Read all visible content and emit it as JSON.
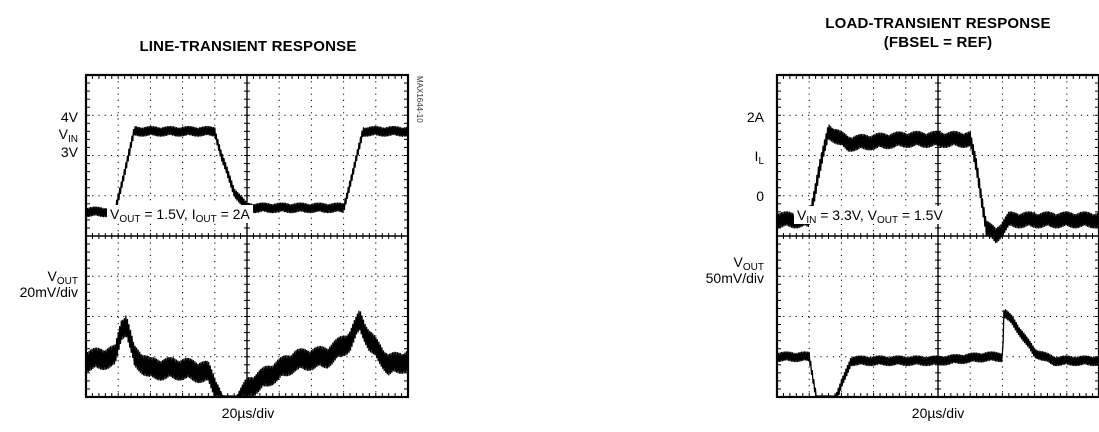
{
  "chart_data": [
    {
      "type": "line",
      "title": "LINE-TRANSIENT RESPONSE",
      "xlabel": "20µs/div",
      "figure_code": "MAX1644-10",
      "annotation": {
        "v": "V",
        "v_sub": "OUT",
        "v_val": " = 1.5V, ",
        "i": "I",
        "i_sub": "OUT",
        "i_val": " = 2A"
      },
      "divisions": {
        "x": 10,
        "y": 8
      },
      "grid": true,
      "traces": [
        {
          "label_lines": [
            {
              "main": "4V"
            },
            {
              "main": "V",
              "sub": "IN"
            },
            {
              "main": "3V"
            }
          ],
          "x": [
            0,
            0.9,
            1.2,
            1.5,
            4.0,
            4.2,
            4.6,
            5.0,
            8.0,
            8.3,
            8.6,
            10
          ],
          "y": [
            -1.4,
            -1.4,
            -0.4,
            0.6,
            0.6,
            0.0,
            -0.9,
            -1.3,
            -1.3,
            -0.4,
            0.6,
            0.6
          ],
          "ripple_div": 0.12
        },
        {
          "label_lines": [
            {
              "main": "V",
              "sub": "OUT"
            },
            {
              "main": "20mV/div"
            }
          ],
          "x": [
            0,
            0.9,
            1.1,
            1.25,
            1.5,
            2.0,
            3.0,
            3.8,
            4.1,
            4.4,
            4.6,
            5.0,
            5.6,
            6.5,
            7.5,
            8.2,
            8.5,
            8.8,
            9.4,
            10
          ],
          "y": [
            -1.1,
            -1.0,
            -0.3,
            -0.2,
            -1.0,
            -1.3,
            -1.3,
            -1.4,
            -1.9,
            -2.6,
            -2.3,
            -1.8,
            -1.5,
            -1.1,
            -1.0,
            -0.6,
            -0.1,
            -0.6,
            -1.2,
            -1.1
          ],
          "ripple_div": 0.28
        }
      ]
    },
    {
      "type": "line",
      "title": "LOAD-TRANSIENT RESPONSE",
      "subtitle": "(FBSEL = REF)",
      "xlabel": "20µs/div",
      "annotation": {
        "v": "V",
        "v_sub": "IN",
        "v_val": " = 3.3V, ",
        "i": "V",
        "i_sub": "OUT",
        "i_val": " = 1.5V"
      },
      "divisions": {
        "x": 10,
        "y": 8
      },
      "grid": true,
      "traces": [
        {
          "label_lines": [
            {
              "main": "2A"
            },
            {
              "main": "I",
              "sub": "L"
            },
            {
              "main": "0"
            }
          ],
          "x": [
            0,
            1.0,
            1.3,
            1.6,
            2.2,
            4.0,
            6.0,
            6.2,
            6.5,
            6.8,
            7.2,
            10
          ],
          "y": [
            -1.6,
            -1.6,
            -0.4,
            0.6,
            0.3,
            0.4,
            0.4,
            -0.3,
            -1.8,
            -2.0,
            -1.6,
            -1.6
          ],
          "ripple_div": 0.2
        },
        {
          "label_lines": [
            {
              "main": "V",
              "sub": "OUT"
            },
            {
              "main": "50mV/div"
            }
          ],
          "x": [
            0,
            1.0,
            1.2,
            1.35,
            1.8,
            2.3,
            3.0,
            5.0,
            6.5,
            7.0,
            7.05,
            7.3,
            8.0,
            8.6,
            10
          ],
          "y": [
            -1.0,
            -1.0,
            -1.9,
            -2.6,
            -2.1,
            -1.1,
            -1.1,
            -1.1,
            -1.0,
            -1.0,
            0.1,
            -0.1,
            -0.9,
            -1.1,
            -1.1
          ],
          "ripple_div": 0.12
        }
      ]
    }
  ]
}
